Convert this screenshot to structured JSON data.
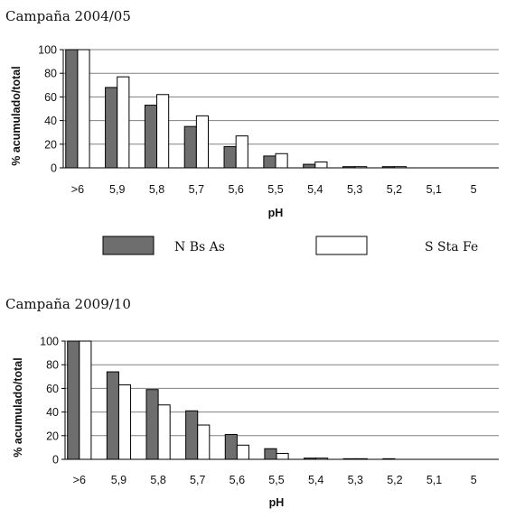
{
  "legend": {
    "items": [
      {
        "label": "N Bs As",
        "color": "#6e6e6e"
      },
      {
        "label": "S Sta Fe",
        "color": "#ffffff"
      }
    ]
  },
  "chart_data": [
    {
      "type": "bar",
      "title": "Campaña 2004/05",
      "xlabel": "pH",
      "ylabel": "% acumulado/total",
      "ylim": [
        0,
        100
      ],
      "yticks": [
        0,
        20,
        40,
        60,
        80,
        100
      ],
      "categories": [
        ">6",
        "5,9",
        "5,8",
        "5,7",
        "5,6",
        "5,5",
        "5,4",
        "5,3",
        "5,2",
        "5,1",
        "5"
      ],
      "grid": true,
      "series": [
        {
          "name": "N Bs As",
          "color": "#6e6e6e",
          "values": [
            100,
            68,
            53,
            35,
            18,
            10,
            3,
            1,
            1,
            0,
            0
          ]
        },
        {
          "name": "S Sta Fe",
          "color": "#ffffff",
          "values": [
            100,
            77,
            62,
            44,
            27,
            12,
            5,
            1,
            1,
            0,
            0
          ]
        }
      ]
    },
    {
      "type": "bar",
      "title": "Campaña 2009/10",
      "xlabel": "pH",
      "ylabel": "% acumulado/total",
      "ylim": [
        0,
        100
      ],
      "yticks": [
        0,
        20,
        40,
        60,
        80,
        100
      ],
      "categories": [
        ">6",
        "5,9",
        "5,8",
        "5,7",
        "5,6",
        "5,5",
        "5,4",
        "5,3",
        "5,2",
        "5,1",
        "5"
      ],
      "grid": true,
      "series": [
        {
          "name": "N Bs As",
          "color": "#6e6e6e",
          "values": [
            100,
            74,
            59,
            41,
            21,
            9,
            1,
            0.5,
            0.5,
            0,
            0
          ]
        },
        {
          "name": "S Sta Fe",
          "color": "#ffffff",
          "values": [
            100,
            63,
            46,
            29,
            12,
            5,
            1,
            0.5,
            0,
            0,
            0
          ]
        }
      ]
    }
  ]
}
